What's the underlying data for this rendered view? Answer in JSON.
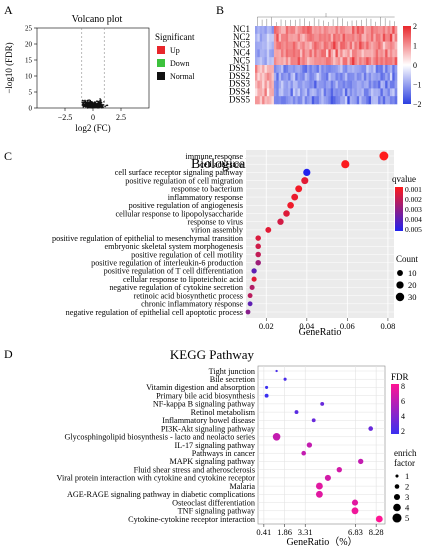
{
  "panel_letters": [
    "A",
    "B",
    "C",
    "D"
  ],
  "colors": {
    "up": "#e8262b",
    "down": "#3cc13c",
    "normal": "#111111",
    "heat_high": "#e8262b",
    "heat_mid": "#ffffff",
    "heat_low": "#2b3fe0",
    "bp_high": "#ff1a1a",
    "bp_low": "#2222ee",
    "kegg_high": "#ff1493",
    "kegg_low": "#3b2ff0"
  },
  "chart_data": [
    {
      "panel": "A",
      "type": "scatter",
      "title": "Volcano plot",
      "xlabel": "log2 (FC)",
      "ylabel": "−log10 (FDR)",
      "xticks": [
        "−2.5",
        "0",
        "2.5"
      ],
      "yticks": [
        "0",
        "5",
        "10",
        "15",
        "20",
        "25"
      ],
      "xlim": [
        -5,
        5
      ],
      "ylim": [
        0,
        25
      ],
      "legend_title": "Significant",
      "legend": [
        "Up",
        "Down",
        "Normal"
      ],
      "legend_position": "right"
    },
    {
      "panel": "B",
      "type": "heatmap",
      "rows": [
        "NC1",
        "NC2",
        "NC3",
        "NC4",
        "NC5",
        "DSS1",
        "DSS2",
        "DSS3",
        "DSS4",
        "DSS5"
      ],
      "colorbar_ticks": [
        "2",
        "1",
        "0",
        "−1",
        "−2"
      ],
      "color_range": [
        -2,
        2
      ]
    },
    {
      "panel": "C",
      "type": "scatter",
      "title": "Biological_Process",
      "xlabel": "GeneRatio",
      "xticks": [
        "0.02",
        "0.04",
        "0.06",
        "0.08"
      ],
      "xlim": [
        0.01,
        0.083
      ],
      "terms": [
        {
          "term": "immune response",
          "ratio": 0.078,
          "qvalue": 0.0001,
          "count": 35
        },
        {
          "term": "cell adhesion",
          "ratio": 0.059,
          "qvalue": 0.0002,
          "count": 27
        },
        {
          "term": "cell surface receptor signaling pathway",
          "ratio": 0.04,
          "qvalue": 0.0055,
          "count": 19
        },
        {
          "term": "positive regulation of cell migration",
          "ratio": 0.039,
          "qvalue": 0.0008,
          "count": 18
        },
        {
          "term": "response to bacterium",
          "ratio": 0.036,
          "qvalue": 0.0004,
          "count": 17
        },
        {
          "term": "inflammatory response",
          "ratio": 0.034,
          "qvalue": 0.0006,
          "count": 16
        },
        {
          "term": "positive regulation of angiogenesis",
          "ratio": 0.032,
          "qvalue": 0.0005,
          "count": 15
        },
        {
          "term": "cellular response to lipopolysaccharide",
          "ratio": 0.03,
          "qvalue": 0.0009,
          "count": 14
        },
        {
          "term": "response to virus",
          "ratio": 0.027,
          "qvalue": 0.0012,
          "count": 13
        },
        {
          "term": "virion assembly",
          "ratio": 0.021,
          "qvalue": 0.0008,
          "count": 10
        },
        {
          "term": "positive regulation of epithelial to mesenchymal transition",
          "ratio": 0.016,
          "qvalue": 0.001,
          "count": 8
        },
        {
          "term": "embryonic skeletal system morphogenesis",
          "ratio": 0.016,
          "qvalue": 0.0013,
          "count": 8
        },
        {
          "term": "positive regulation of cell motility",
          "ratio": 0.016,
          "qvalue": 0.0016,
          "count": 8
        },
        {
          "term": "positive regulation of interleukin-6 production",
          "ratio": 0.016,
          "qvalue": 0.0025,
          "count": 8
        },
        {
          "term": "positive regulation of T cell differentiation",
          "ratio": 0.014,
          "qvalue": 0.004,
          "count": 7
        },
        {
          "term": "cellular response to lipoteichoic acid",
          "ratio": 0.014,
          "qvalue": 0.0008,
          "count": 6
        },
        {
          "term": "negative regulation of cytokine secretion",
          "ratio": 0.013,
          "qvalue": 0.002,
          "count": 6
        },
        {
          "term": "retinoic acid biosynthetic process",
          "ratio": 0.012,
          "qvalue": 0.0018,
          "count": 5
        },
        {
          "term": "chronic inflammatory response",
          "ratio": 0.012,
          "qvalue": 0.004,
          "count": 5
        },
        {
          "term": "negative regulation of epithelial cell apoptotic process",
          "ratio": 0.011,
          "qvalue": 0.003,
          "count": 5
        }
      ],
      "color_legend_title": "qvalue",
      "color_legend_ticks": [
        "0.001",
        "0.002",
        "0.003",
        "0.004",
        "0.005"
      ],
      "size_legend_title": "Count",
      "size_legend_ticks": [
        "10",
        "20",
        "30"
      ]
    },
    {
      "panel": "D",
      "type": "scatter",
      "title": "KEGG Pathway",
      "xlabel": "GeneRatio（%）",
      "xticks": [
        "0.41",
        "1.86",
        "3.31",
        "6.83",
        "8.28"
      ],
      "xtick_values": [
        0.41,
        1.86,
        3.31,
        6.83,
        8.28
      ],
      "xlim": [
        0.0,
        8.9
      ],
      "pathways": [
        {
          "term": "Tight junction",
          "ratio": 1.3,
          "fdr": 2.0,
          "enrich": 0.5
        },
        {
          "term": "Bile secretion",
          "ratio": 1.9,
          "fdr": 2.0,
          "enrich": 1.0
        },
        {
          "term": "Vitamin digestion and absorption",
          "ratio": 0.6,
          "fdr": 1.5,
          "enrich": 1.0
        },
        {
          "term": "Primary bile acid biosynthesis",
          "ratio": 0.6,
          "fdr": 1.5,
          "enrich": 1.5
        },
        {
          "term": "NF-kappa B signaling pathway",
          "ratio": 4.5,
          "fdr": 3.0,
          "enrich": 1.5
        },
        {
          "term": "Retinol metabolism",
          "ratio": 2.7,
          "fdr": 2.5,
          "enrich": 1.5
        },
        {
          "term": "Inflammatory bowel disease",
          "ratio": 3.9,
          "fdr": 3.0,
          "enrich": 1.5
        },
        {
          "term": "PI3K-Akt signaling pathway",
          "ratio": 7.9,
          "fdr": 3.0,
          "enrich": 2.0
        },
        {
          "term": "Glycosphingolipid biosynthesis - lacto and neolacto series",
          "ratio": 1.3,
          "fdr": 6.0,
          "enrich": 4.0
        },
        {
          "term": "IL-17 signaling pathway",
          "ratio": 3.6,
          "fdr": 6.0,
          "enrich": 2.5
        },
        {
          "term": "Pathways in cancer",
          "ratio": 3.2,
          "fdr": 6.0,
          "enrich": 2.0
        },
        {
          "term": "MAPK signaling pathway",
          "ratio": 7.2,
          "fdr": 6.0,
          "enrich": 2.5
        },
        {
          "term": "Fluid shear stress and atherosclerosis",
          "ratio": 5.7,
          "fdr": 6.5,
          "enrich": 2.5
        },
        {
          "term": "Viral protein interaction with cytokine and cytokine receptor",
          "ratio": 4.9,
          "fdr": 6.5,
          "enrich": 3.0
        },
        {
          "term": "Malaria",
          "ratio": 4.3,
          "fdr": 7.0,
          "enrich": 3.5
        },
        {
          "term": "AGE-RAGE signaling pathway in diabetic complications",
          "ratio": 4.3,
          "fdr": 7.0,
          "enrich": 3.5
        },
        {
          "term": "Osteoclast differentiation",
          "ratio": 6.8,
          "fdr": 7.0,
          "enrich": 3.0
        },
        {
          "term": "TNF signaling pathway",
          "ratio": 6.8,
          "fdr": 7.5,
          "enrich": 3.5
        },
        {
          "term": "Cytokine-cytokine receptor interaction",
          "ratio": 8.5,
          "fdr": 8.0,
          "enrich": 3.5
        }
      ],
      "color_legend_title": "FDR",
      "color_legend_ticks": [
        "8",
        "6",
        "4",
        "2"
      ],
      "size_legend_title": "enrich\nfactor",
      "size_legend_ticks": [
        "1",
        "2",
        "3",
        "4",
        "5"
      ]
    }
  ]
}
